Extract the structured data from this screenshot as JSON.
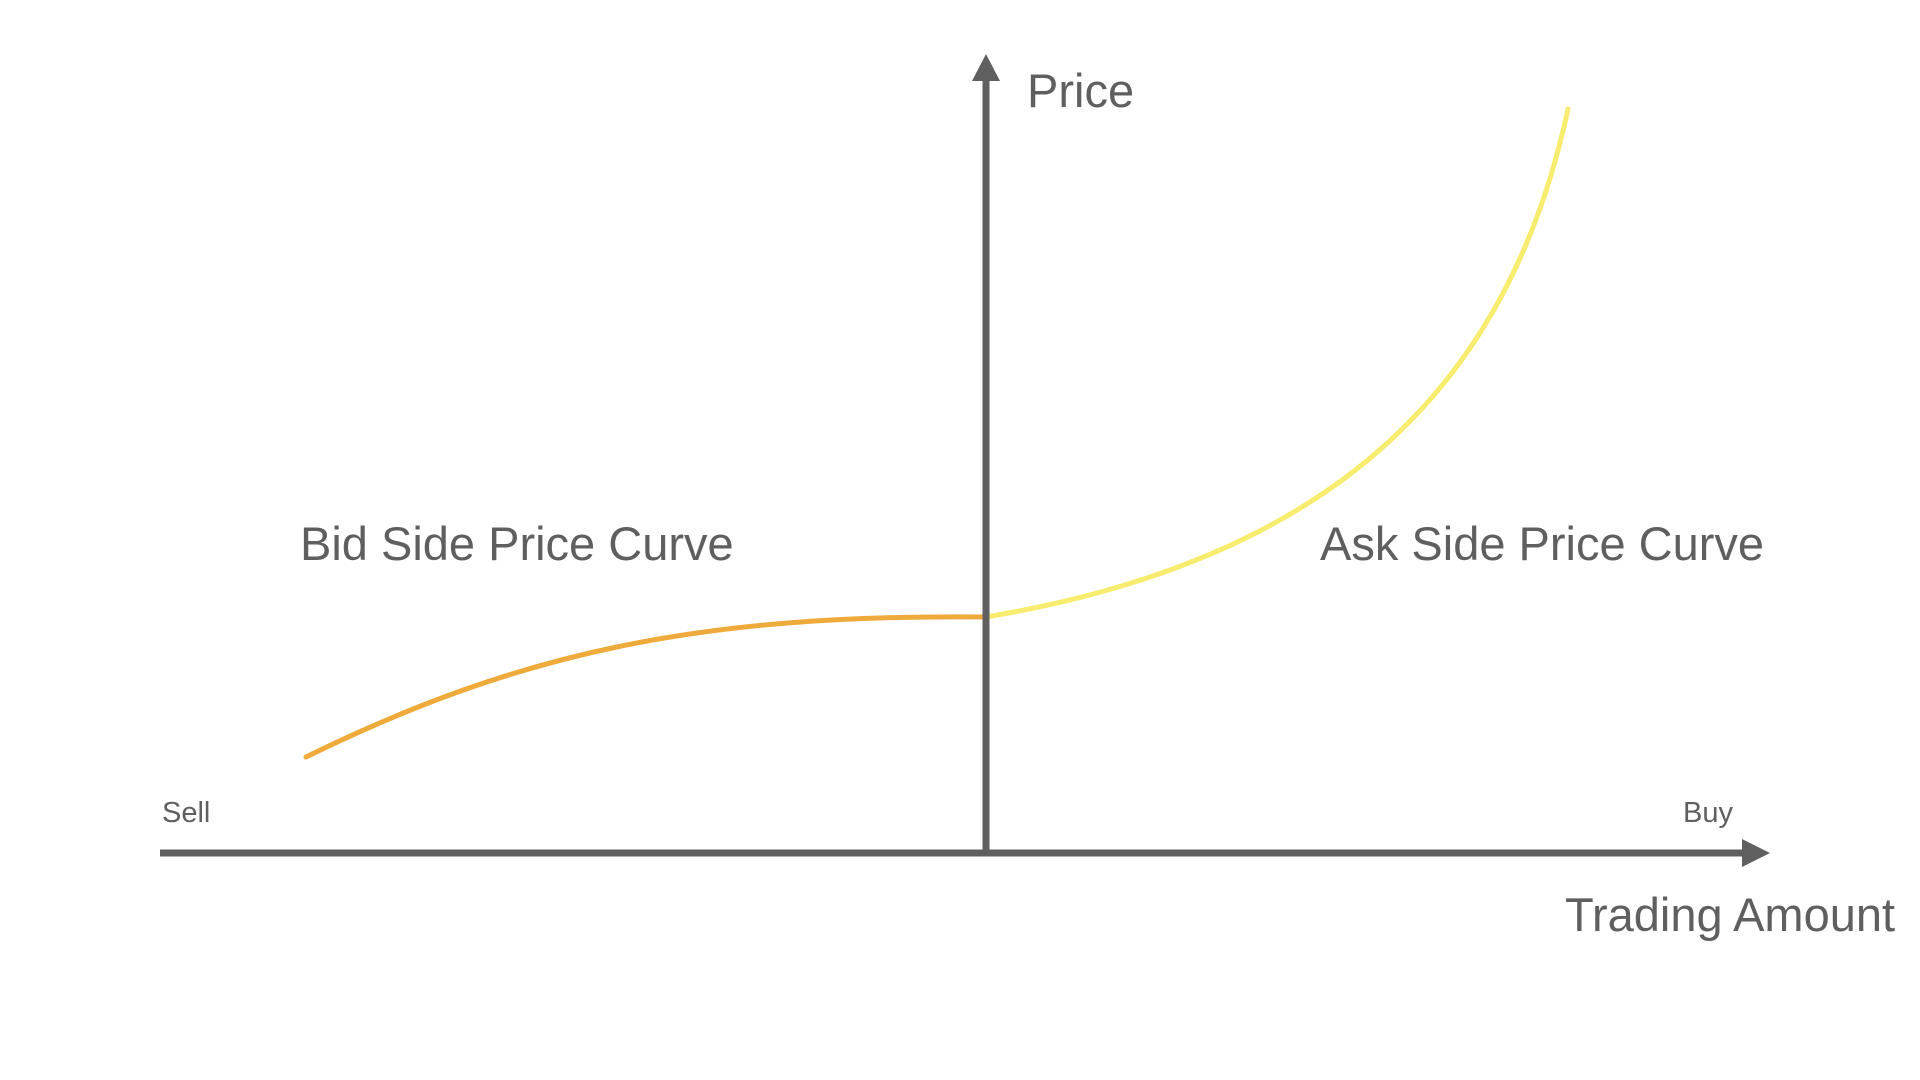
{
  "labels": {
    "y_axis": "Price",
    "x_axis": "Trading Amount",
    "left_end": "Sell",
    "right_end": "Buy",
    "bid_curve": "Bid Side Price Curve",
    "ask_curve": "Ask Side Price Curve"
  },
  "colors": {
    "axis": "#5f5f5f",
    "text": "#5f5f5f",
    "bid_curve": "#eeaa3a",
    "ask_curve": "#f8ec6e"
  }
}
